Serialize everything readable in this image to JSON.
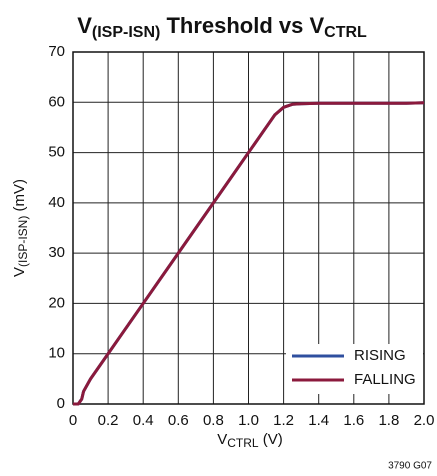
{
  "chart_data": {
    "type": "line",
    "title": [
      "V",
      "(ISP-ISN)",
      " Threshold vs V",
      "CTRL"
    ],
    "ylabel": [
      "V",
      "(ISP-ISN)",
      " (mV)"
    ],
    "xlabel": [
      "V",
      "CTRL",
      " (V)"
    ],
    "note": "3790 G07",
    "x": [
      0,
      0.03,
      0.05,
      0.06,
      0.1,
      0.2,
      0.3,
      0.4,
      0.5,
      0.6,
      0.7,
      0.8,
      0.9,
      1.0,
      1.1,
      1.15,
      1.2,
      1.25,
      1.3,
      1.4,
      1.5,
      1.6,
      1.7,
      1.8,
      1.9,
      2.0
    ],
    "series": [
      {
        "name": "RISING",
        "color": "#2f4f9f",
        "values": [
          0,
          0,
          1,
          2.5,
          5,
          10,
          15,
          20,
          25,
          30,
          35,
          40,
          45,
          50,
          55,
          57.5,
          59,
          59.6,
          59.7,
          59.8,
          59.8,
          59.8,
          59.8,
          59.8,
          59.8,
          59.9
        ]
      },
      {
        "name": "FALLING",
        "color": "#8b1a3c",
        "values": [
          0,
          0,
          1,
          2.5,
          5,
          10,
          15,
          20,
          25,
          30,
          35,
          40,
          45,
          50,
          55,
          57.5,
          59,
          59.6,
          59.7,
          59.8,
          59.8,
          59.8,
          59.8,
          59.8,
          59.8,
          59.9
        ]
      }
    ],
    "xlim": [
      0,
      2
    ],
    "ylim": [
      0,
      70
    ],
    "xticks": [
      0,
      0.2,
      0.4,
      0.6,
      0.8,
      {
        "value": 1,
        "label": "1.0"
      },
      1.2,
      1.4,
      1.6,
      1.8,
      {
        "value": 2,
        "label": "2.0"
      }
    ],
    "yticks": [
      0,
      10,
      20,
      30,
      40,
      50,
      60,
      70
    ],
    "grid": true,
    "legend": "lower right"
  }
}
